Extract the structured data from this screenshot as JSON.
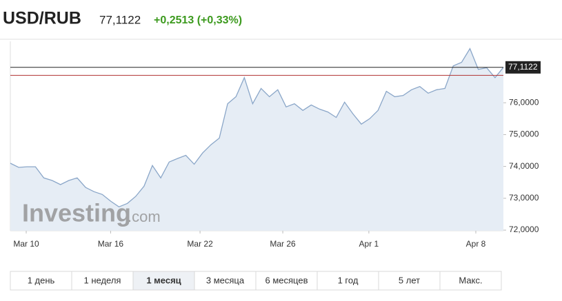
{
  "header": {
    "symbol": "USD/RUB",
    "price": "77,1122",
    "change": "+0,2513 (+0,33%)"
  },
  "chart_data": {
    "type": "area",
    "watermark": {
      "brand": "Investing",
      "suffix": ".com"
    },
    "color": "#8aa6c8",
    "fill": "#e6edf5",
    "x": [
      0,
      1,
      2,
      3,
      4,
      5,
      6,
      7,
      8,
      9,
      10,
      11,
      12,
      13,
      14,
      15,
      16,
      17,
      18,
      19,
      20,
      21,
      22,
      23,
      24,
      25,
      26,
      27,
      28,
      29,
      30,
      31,
      32,
      33,
      34,
      35,
      36,
      37,
      38,
      39,
      40,
      41,
      42,
      43,
      44,
      45,
      46,
      47,
      48,
      49,
      50,
      51,
      52,
      53,
      54,
      55,
      56,
      57,
      58,
      59
    ],
    "values": [
      74.1,
      73.97,
      73.99,
      73.99,
      73.64,
      73.56,
      73.43,
      73.56,
      73.64,
      73.34,
      73.21,
      73.12,
      72.91,
      72.73,
      72.84,
      73.06,
      73.38,
      74.03,
      73.64,
      74.14,
      74.25,
      74.35,
      74.07,
      74.42,
      74.68,
      74.89,
      75.97,
      76.19,
      76.79,
      75.97,
      76.45,
      76.19,
      76.41,
      75.87,
      75.97,
      75.76,
      75.93,
      75.8,
      75.71,
      75.54,
      76.02,
      75.65,
      75.33,
      75.5,
      75.76,
      76.36,
      76.19,
      76.23,
      76.41,
      76.51,
      76.3,
      76.41,
      76.45,
      77.16,
      77.27,
      77.7,
      77.05,
      77.1,
      76.79,
      77.1122
    ],
    "xlim": [
      0,
      59
    ],
    "xticks": [
      {
        "value": 1.9,
        "label": "Mar 10"
      },
      {
        "value": 12,
        "label": "Mar 16"
      },
      {
        "value": 22.7,
        "label": "Mar 22"
      },
      {
        "value": 32.6,
        "label": "Mar 26"
      },
      {
        "value": 42.9,
        "label": "Apr 1"
      },
      {
        "value": 55.7,
        "label": "Apr 8"
      }
    ],
    "ylim": [
      71.98,
      77.93
    ],
    "yticks": [
      {
        "value": 72,
        "label": "72,0000"
      },
      {
        "value": 73,
        "label": "73,0000"
      },
      {
        "value": 74,
        "label": "74,0000"
      },
      {
        "value": 75,
        "label": "75,0000"
      },
      {
        "value": 76,
        "label": "76,0000"
      }
    ],
    "reference_value": 76.8609,
    "reference_color": "#b03030"
  },
  "ranges": {
    "buttons": [
      "1 день",
      "1 неделя",
      "1 месяц",
      "3 месяца",
      "6 месяцев",
      "1 год",
      "5 лет",
      "Макс."
    ],
    "active": 2
  }
}
